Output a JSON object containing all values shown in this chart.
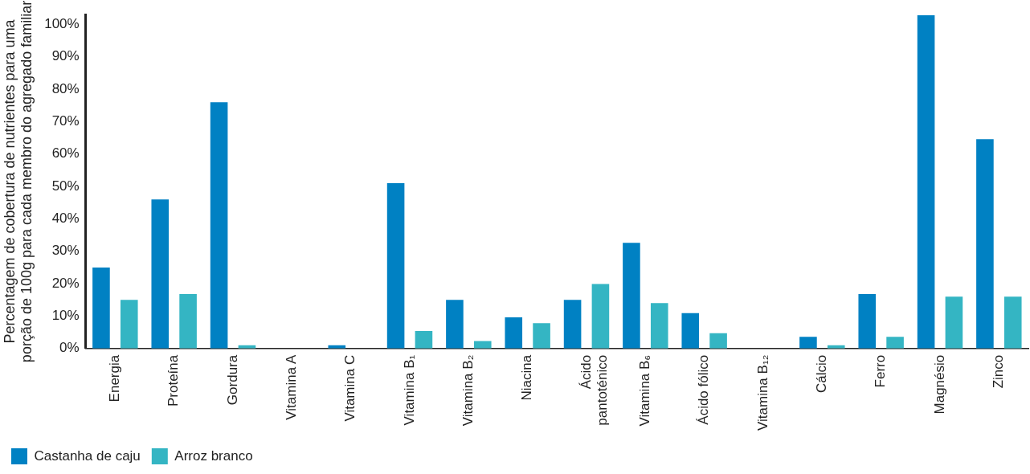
{
  "chart_data": {
    "type": "bar",
    "ylabel": "Percentagem de cobertura de nutrientes para uma\nporção de 100g para cada membro do agregado familiar",
    "categories": [
      "Energia",
      "Proteína",
      "Gordura",
      "Vitamina A",
      "Vitamina C",
      "Vitamina B₁",
      "Vitamina B₂",
      "Niacina",
      "Ácido\npantoténico",
      "Vitamina B₆",
      "Ácido fólico",
      "Vitamina B₁₂",
      "Cálcio",
      "Ferro",
      "Magnésio",
      "Zinco"
    ],
    "series": [
      {
        "name": "Castanha de caju",
        "color": "#0081c3",
        "values": [
          25,
          46,
          76,
          0,
          1,
          51,
          15,
          9.6,
          15,
          32.6,
          10.9,
          0,
          3.6,
          16.8,
          102.8,
          64.6
        ]
      },
      {
        "name": "Arroz branco",
        "color": "#34b5c3",
        "values": [
          15,
          16.8,
          1,
          0,
          0,
          5.4,
          2.3,
          7.8,
          19.9,
          14,
          4.7,
          0,
          1,
          3.6,
          16,
          16
        ]
      }
    ],
    "ylim": [
      0,
      103
    ],
    "yticks": [
      {
        "value": 0,
        "label": "0%"
      },
      {
        "value": 10,
        "label": "10%"
      },
      {
        "value": 20,
        "label": "20%"
      },
      {
        "value": 30,
        "label": "30%"
      },
      {
        "value": 40,
        "label": "40%"
      },
      {
        "value": 50,
        "label": "50%"
      },
      {
        "value": 60,
        "label": "60%"
      },
      {
        "value": 70,
        "label": "70%"
      },
      {
        "value": 80,
        "label": "80%"
      },
      {
        "value": 90,
        "label": "90%"
      },
      {
        "value": 100,
        "label": "100%"
      }
    ],
    "grid": false,
    "legend": "bottom left"
  }
}
